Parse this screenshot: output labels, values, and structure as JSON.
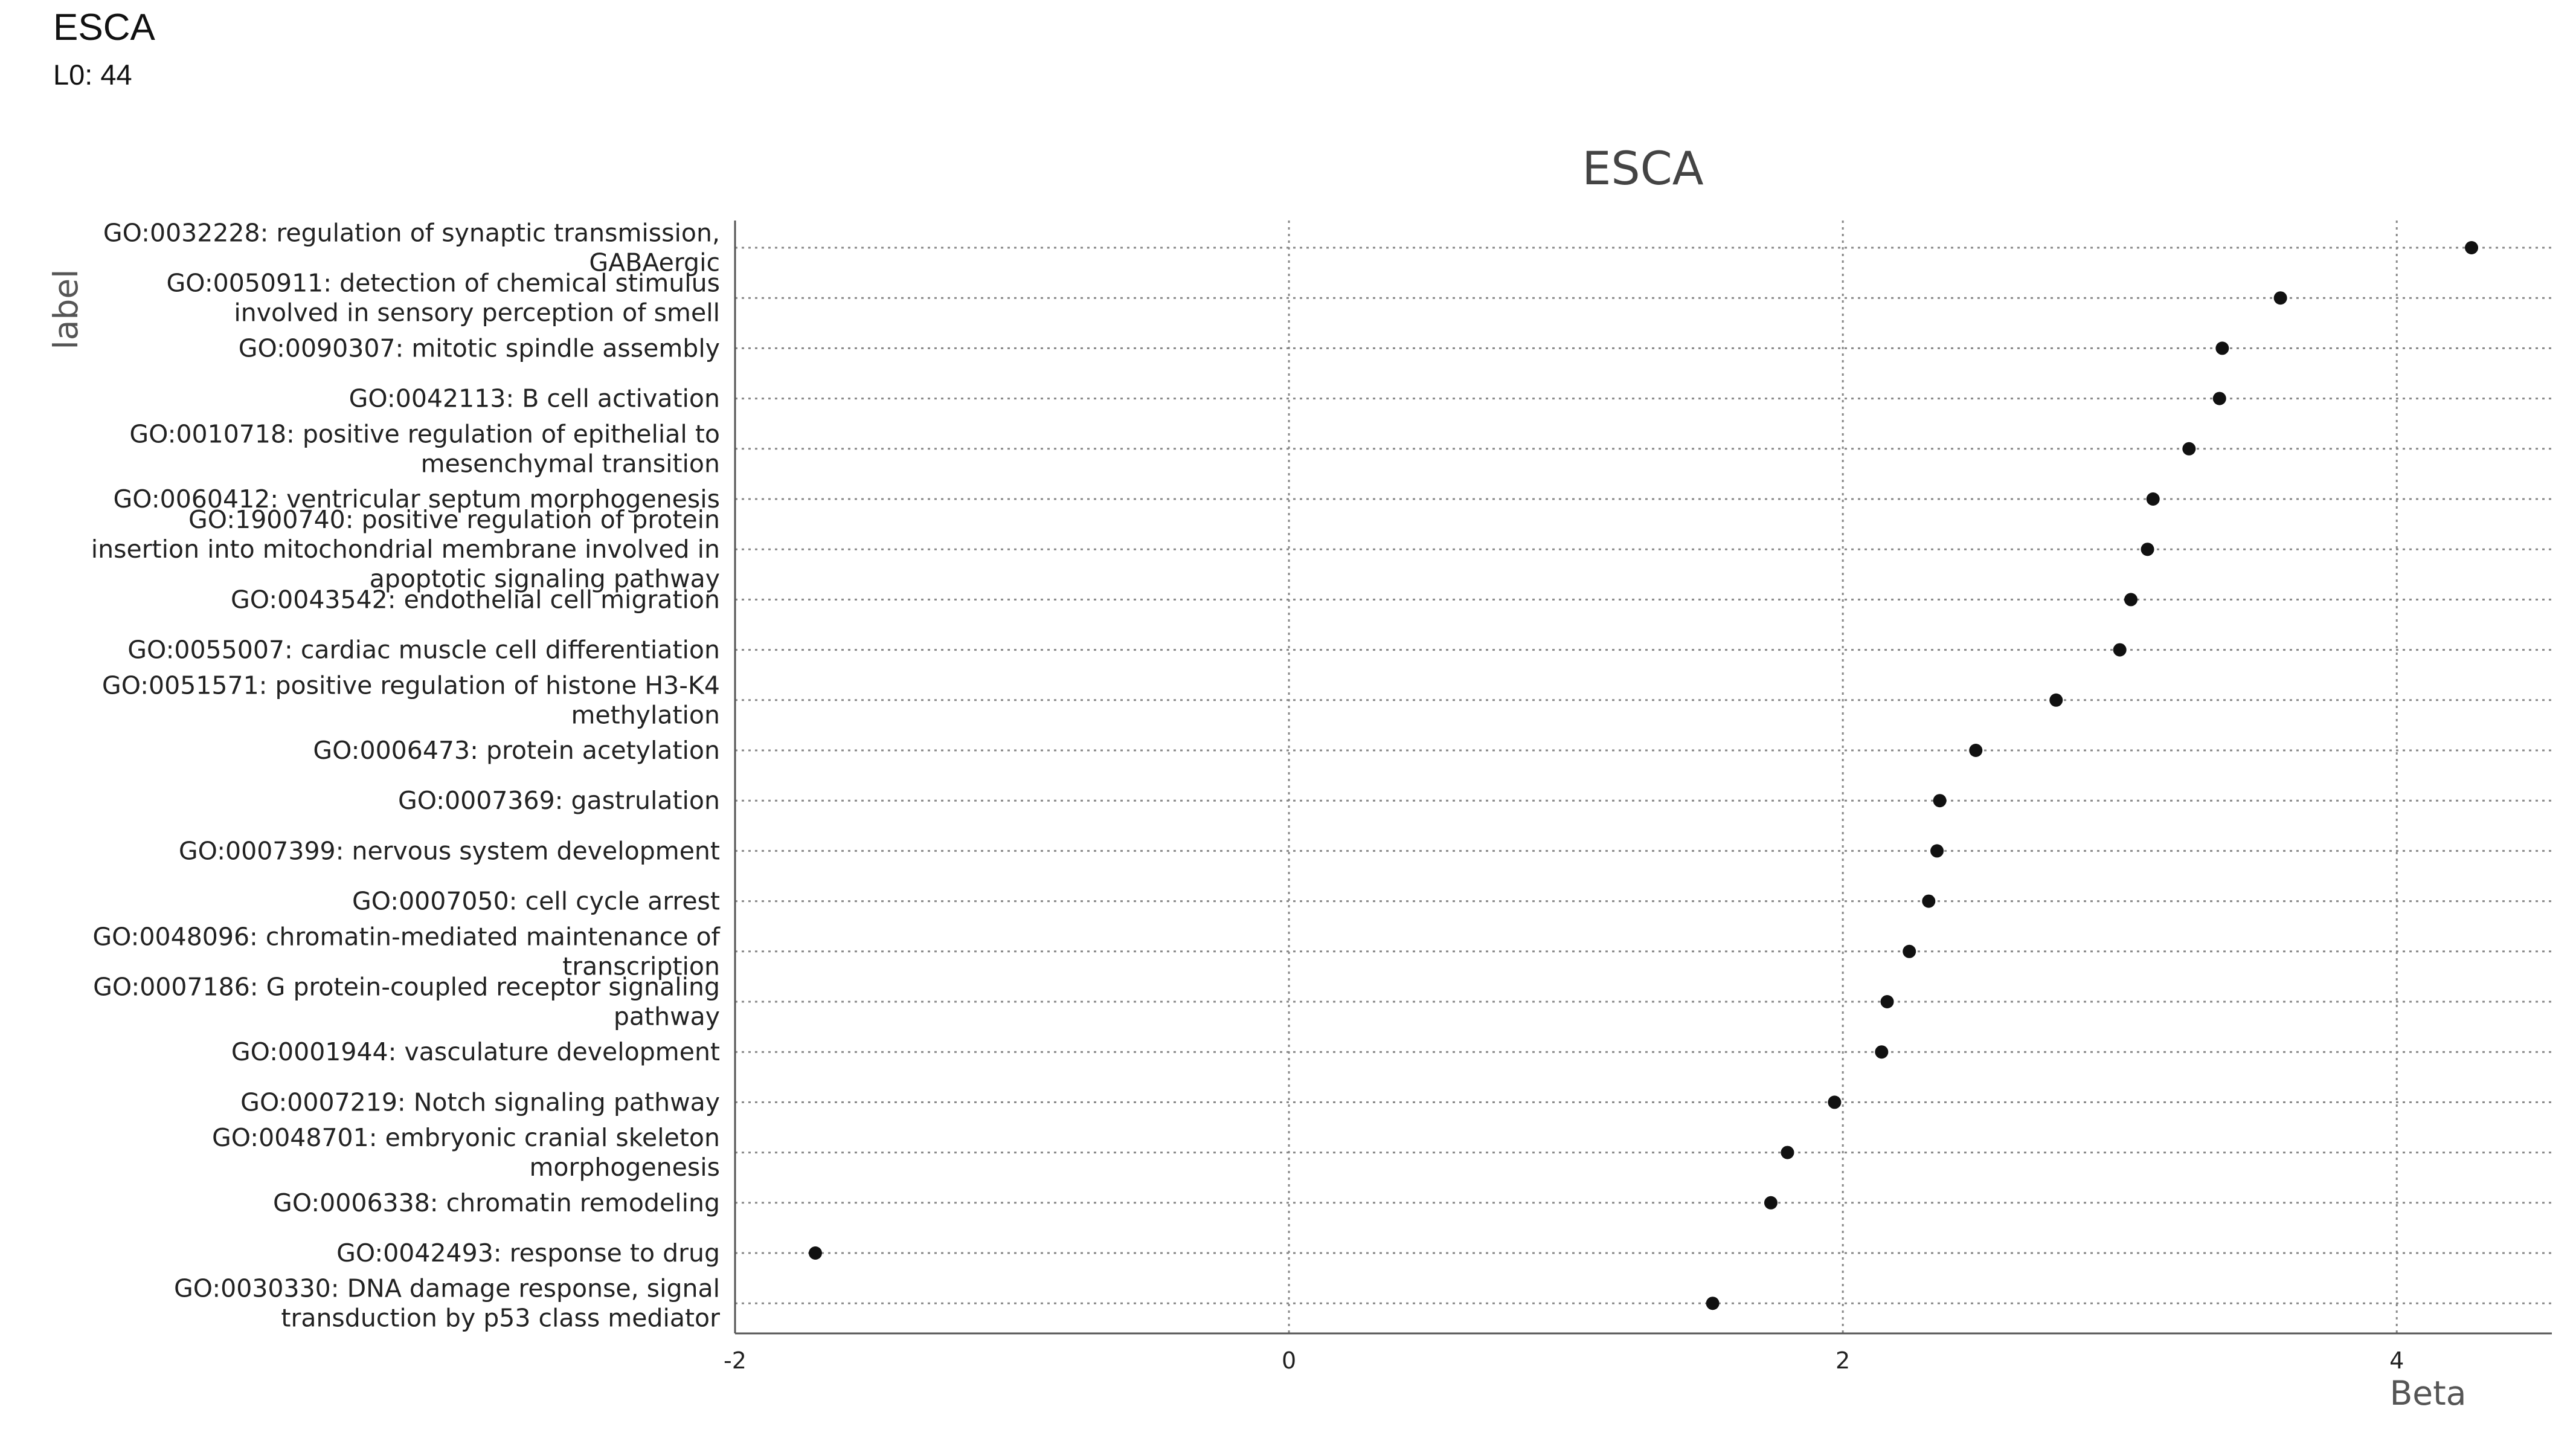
{
  "header": {
    "title": "ESCA",
    "subtitle": "L0: 44"
  },
  "chart_data": {
    "type": "scatter",
    "title": "ESCA",
    "xlabel": "Beta",
    "ylabel": "label",
    "xlim": [
      -2,
      4.56
    ],
    "xticks": [
      -2,
      0,
      2,
      4
    ],
    "grid": "dotted, vertical at x ticks and horizontal at each category",
    "legend": "none",
    "categories": [
      "GO:0032228: regulation of synaptic transmission, GABAergic",
      "GO:0050911: detection of chemical stimulus involved in sensory perception of smell",
      "GO:0090307: mitotic spindle assembly",
      "GO:0042113: B cell activation",
      "GO:0010718: positive regulation of epithelial to mesenchymal transition",
      "GO:0060412: ventricular septum morphogenesis",
      "GO:1900740: positive regulation of protein insertion into mitochondrial membrane involved in apoptotic signaling pathway",
      "GO:0043542: endothelial cell migration",
      "GO:0055007: cardiac muscle cell differentiation",
      "GO:0051571: positive regulation of histone H3-K4 methylation",
      "GO:0006473: protein acetylation",
      "GO:0007369: gastrulation",
      "GO:0007399: nervous system development",
      "GO:0007050: cell cycle arrest",
      "GO:0048096: chromatin-mediated maintenance of transcription",
      "GO:0007186: G protein-coupled receptor signaling pathway",
      "GO:0001944: vasculature development",
      "GO:0007219: Notch signaling pathway",
      "GO:0048701: embryonic cranial skeleton morphogenesis",
      "GO:0006338: chromatin remodeling",
      "GO:0042493: response to drug",
      "GO:0030330: DNA damage response, signal transduction by p53 class mediator"
    ],
    "category_lines": [
      [
        "GO:0032228: regulation of synaptic transmission,",
        "GABAergic"
      ],
      [
        "GO:0050911: detection of chemical stimulus",
        "involved in sensory perception of smell"
      ],
      [
        "GO:0090307: mitotic spindle assembly"
      ],
      [
        "GO:0042113: B cell activation"
      ],
      [
        "GO:0010718: positive regulation of epithelial to",
        "mesenchymal transition"
      ],
      [
        "GO:0060412: ventricular septum morphogenesis"
      ],
      [
        "GO:1900740: positive regulation of protein",
        "insertion into mitochondrial membrane involved in",
        "apoptotic signaling pathway"
      ],
      [
        "GO:0043542: endothelial cell migration"
      ],
      [
        "GO:0055007: cardiac muscle cell differentiation"
      ],
      [
        "GO:0051571: positive regulation of histone H3-K4",
        "methylation"
      ],
      [
        "GO:0006473: protein acetylation"
      ],
      [
        "GO:0007369: gastrulation"
      ],
      [
        "GO:0007399: nervous system development"
      ],
      [
        "GO:0007050: cell cycle arrest"
      ],
      [
        "GO:0048096: chromatin-mediated maintenance of",
        "transcription"
      ],
      [
        "GO:0007186: G protein-coupled receptor signaling",
        "pathway"
      ],
      [
        "GO:0001944: vasculature development"
      ],
      [
        "GO:0007219: Notch signaling pathway"
      ],
      [
        "GO:0048701: embryonic cranial skeleton",
        "morphogenesis"
      ],
      [
        "GO:0006338: chromatin remodeling"
      ],
      [
        "GO:0042493: response to drug"
      ],
      [
        "GO:0030330: DNA damage response, signal",
        "transduction by p53 class mediator"
      ]
    ],
    "values": [
      4.27,
      3.58,
      3.37,
      3.36,
      3.25,
      3.12,
      3.1,
      3.04,
      3.0,
      2.77,
      2.48,
      2.35,
      2.34,
      2.31,
      2.24,
      2.16,
      2.14,
      1.97,
      1.8,
      1.74,
      -1.71,
      1.53
    ],
    "point_color": "#111111",
    "grid_color": "#888888"
  }
}
